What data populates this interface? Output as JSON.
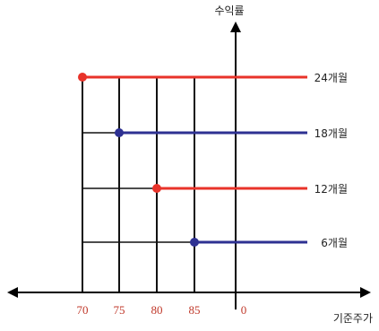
{
  "chart_data": {
    "type": "line",
    "title": "",
    "ylabel": "수익률",
    "xlabel": "기준주가",
    "x_ticks": [
      {
        "label": "70",
        "value": 70
      },
      {
        "label": "75",
        "value": 75
      },
      {
        "label": "80",
        "value": 80
      },
      {
        "label": "85",
        "value": 85
      },
      {
        "label": "0",
        "value": 0
      }
    ],
    "series": [
      {
        "name": "24개월",
        "start_x": 70,
        "color": "#e8332a"
      },
      {
        "name": "18개월",
        "start_x": 75,
        "color": "#2e3192"
      },
      {
        "name": "12개월",
        "start_x": 80,
        "color": "#e8332a"
      },
      {
        "name": "6개월",
        "start_x": 85,
        "color": "#2e3192"
      }
    ],
    "tick_label_color": "#c0392b",
    "grid_color": "#111111"
  }
}
